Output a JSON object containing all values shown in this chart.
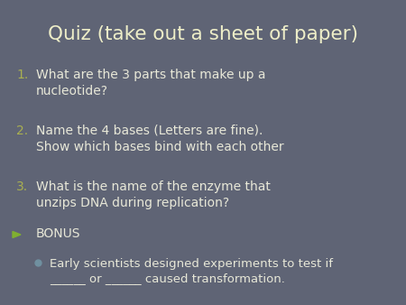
{
  "title": "Quiz (take out a sheet of paper)",
  "title_color": "#eeeec8",
  "title_fontsize": 15.5,
  "background_color": "#5f6475",
  "text_color": "#e8e8d8",
  "number_color": "#aab050",
  "bullet_color": "#80b030",
  "dot_color": "#7090a0",
  "items": [
    "What are the 3 parts that make up a\nnucleotide?",
    "Name the 4 bases (Letters are fine).\nShow which bases bind with each other",
    "What is the name of the enzyme that\nunzips DNA during replication?"
  ],
  "bonus_label": "BONUS",
  "bonus_bullet": "Early scientists designed experiments to test if\n______ or ______ caused transformation."
}
